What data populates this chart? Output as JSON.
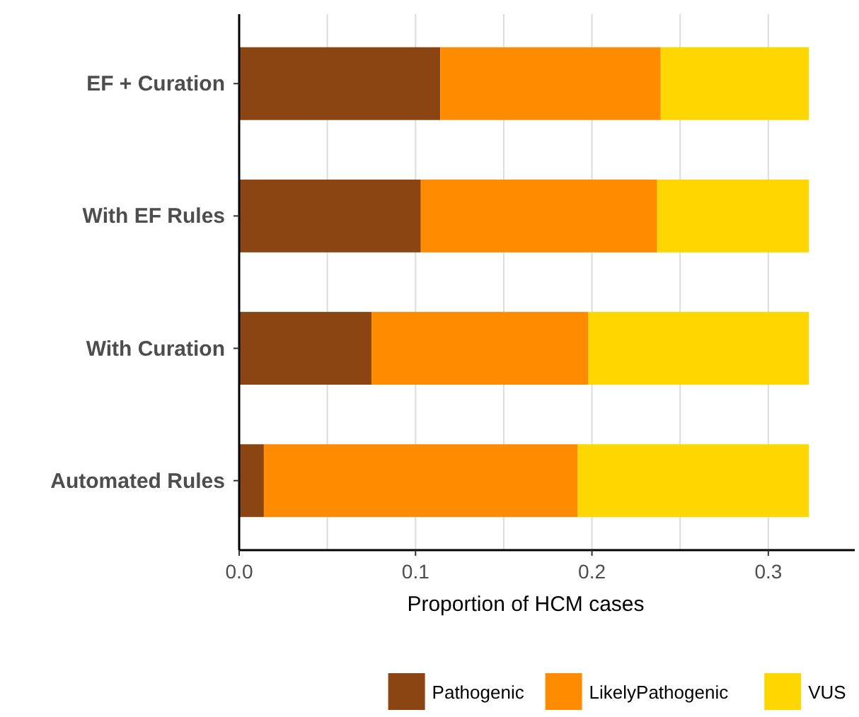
{
  "chart_data": {
    "type": "bar",
    "orientation": "horizontal",
    "stacked": true,
    "xlabel": "Proportion of HCM cases",
    "categories": [
      "EF + Curation",
      "With EF Rules",
      "With Curation",
      "Automated Rules"
    ],
    "series": [
      {
        "name": "Pathogenic",
        "color": "#8b4513",
        "values": [
          0.114,
          0.103,
          0.075,
          0.014
        ]
      },
      {
        "name": "LikelyPathogenic",
        "color": "#ff8c00",
        "values": [
          0.125,
          0.134,
          0.123,
          0.178
        ]
      },
      {
        "name": "VUS",
        "color": "#ffd700",
        "values": [
          0.084,
          0.086,
          0.125,
          0.131
        ]
      }
    ],
    "xlim": [
      0,
      0.349
    ],
    "xticks": [
      {
        "value": 0,
        "label": "0.0"
      },
      {
        "value": 0.05,
        "label": null
      },
      0.1,
      {
        "value": 0.15,
        "label": null
      },
      0.2,
      {
        "value": 0.25,
        "label": null
      },
      0.3
    ],
    "grid": "x",
    "legend": "bottom"
  }
}
